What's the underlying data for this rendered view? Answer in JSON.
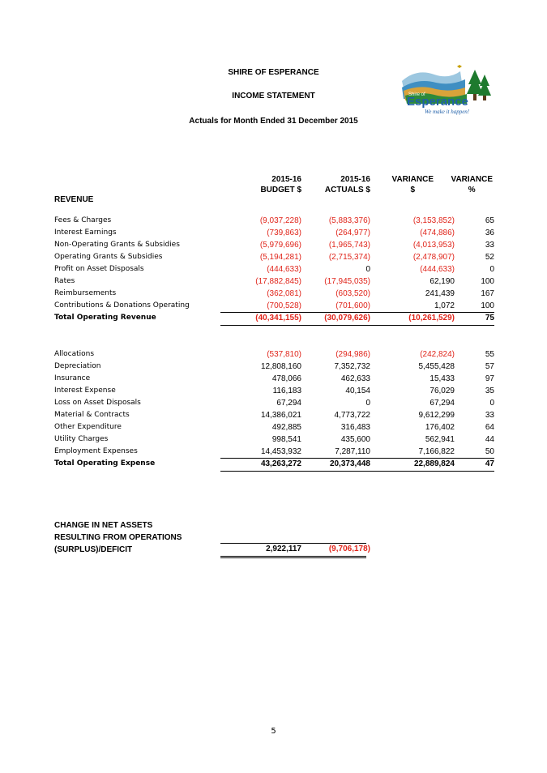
{
  "header": {
    "org": "SHIRE OF ESPERANCE",
    "title": "INCOME STATEMENT",
    "subtitle": "Actuals for Month Ended 31 December 2015"
  },
  "logo": {
    "name": "Shire of Esperance",
    "wordmark": "Esperance",
    "prefix": "Shire of",
    "tagline": "We make it happen!"
  },
  "columns": {
    "budget": [
      "2015-16",
      "BUDGET $"
    ],
    "actuals": [
      "2015-16",
      "ACTUALS $"
    ],
    "variance_amt": [
      "VARIANCE",
      "$"
    ],
    "variance_pct": [
      "VARIANCE",
      "%"
    ]
  },
  "revenue": {
    "heading": "REVENUE",
    "rows": [
      {
        "label": "Fees & Charges",
        "budget": "(9,037,228)",
        "actuals": "(5,883,376)",
        "variance": "(3,153,852)",
        "pct": "65"
      },
      {
        "label": "Interest Earnings",
        "budget": "(739,863)",
        "actuals": "(264,977)",
        "variance": "(474,886)",
        "pct": "36"
      },
      {
        "label": "Non-Operating Grants & Subsidies",
        "budget": "(5,979,696)",
        "actuals": "(1,965,743)",
        "variance": "(4,013,953)",
        "pct": "33"
      },
      {
        "label": "Operating Grants & Subsidies",
        "budget": "(5,194,281)",
        "actuals": "(2,715,374)",
        "variance": "(2,478,907)",
        "pct": "52"
      },
      {
        "label": "Profit on Asset Disposals",
        "budget": "(444,633)",
        "actuals": "0",
        "variance": "(444,633)",
        "pct": "0"
      },
      {
        "label": "Rates",
        "budget": "(17,882,845)",
        "actuals": "(17,945,035)",
        "variance": "62,190",
        "pct": "100"
      },
      {
        "label": "Reimbursements",
        "budget": "(362,081)",
        "actuals": "(603,520)",
        "variance": "241,439",
        "pct": "167"
      },
      {
        "label": "Contributions & Donations Operating",
        "budget": "(700,528)",
        "actuals": "(701,600)",
        "variance": "1,072",
        "pct": "100"
      }
    ],
    "total": {
      "label": "Total Operating Revenue",
      "budget": "(40,341,155)",
      "actuals": "(30,079,626)",
      "variance": "(10,261,529)",
      "pct": "75"
    }
  },
  "expense": {
    "rows": [
      {
        "label": "Allocations",
        "budget": "(537,810)",
        "actuals": "(294,986)",
        "variance": "(242,824)",
        "pct": "55"
      },
      {
        "label": "Depreciation",
        "budget": "12,808,160",
        "actuals": "7,352,732",
        "variance": "5,455,428",
        "pct": "57"
      },
      {
        "label": "Insurance",
        "budget": "478,066",
        "actuals": "462,633",
        "variance": "15,433",
        "pct": "97"
      },
      {
        "label": "Interest Expense",
        "budget": "116,183",
        "actuals": "40,154",
        "variance": "76,029",
        "pct": "35"
      },
      {
        "label": "Loss on Asset Disposals",
        "budget": "67,294",
        "actuals": "0",
        "variance": "67,294",
        "pct": "0"
      },
      {
        "label": "Material & Contracts",
        "budget": "14,386,021",
        "actuals": "4,773,722",
        "variance": "9,612,299",
        "pct": "33"
      },
      {
        "label": "Other Expenditure",
        "budget": "492,885",
        "actuals": "316,483",
        "variance": "176,402",
        "pct": "64"
      },
      {
        "label": "Utility Charges",
        "budget": "998,541",
        "actuals": "435,600",
        "variance": "562,941",
        "pct": "44"
      },
      {
        "label": "Employment Expenses",
        "budget": "14,453,932",
        "actuals": "7,287,110",
        "variance": "7,166,822",
        "pct": "50"
      }
    ],
    "total": {
      "label": "Total Operating Expense",
      "budget": "43,263,272",
      "actuals": "20,373,448",
      "variance": "22,889,824",
      "pct": "47"
    }
  },
  "net": {
    "lines": [
      "CHANGE IN NET ASSETS",
      "RESULTING FROM OPERATIONS",
      "(SURPLUS)/DEFICIT"
    ],
    "budget": "2,922,117",
    "actuals": "(9,706,178)"
  },
  "page_number": "5",
  "colors": {
    "negative": "#e0251b",
    "text": "#000000"
  }
}
